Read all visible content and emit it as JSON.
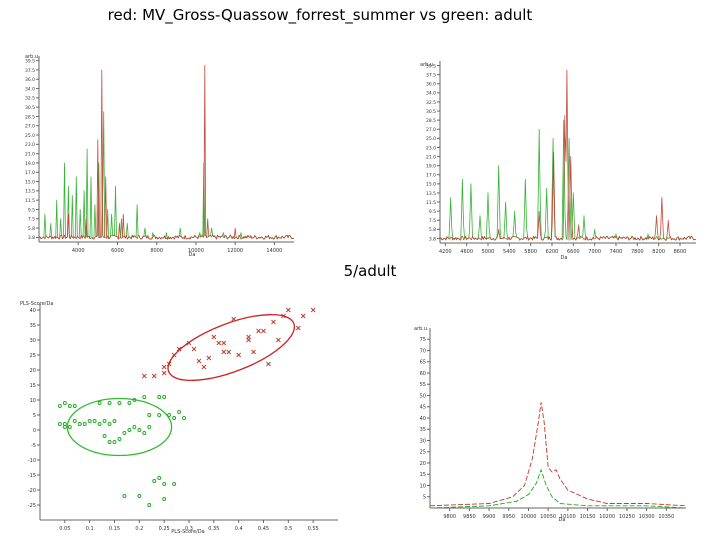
{
  "header": {
    "title": "red: MV_Gross-Quassow_forrest_summer vs  green: adult",
    "subtitle": "5/adult"
  },
  "colors": {
    "red": "#c0392b",
    "green": "#22aa22",
    "axis": "#666666",
    "ellipse_red": "#cc2222",
    "ellipse_green": "#33bb33"
  },
  "chart_data": [
    {
      "type": "line",
      "name": "spectrum-top-left",
      "xlim": [
        2000,
        15000
      ],
      "ylim": [
        0,
        40
      ],
      "x_ticks": [
        "4000",
        "6000",
        "8000",
        "10000",
        "12000",
        "14000"
      ],
      "x_tick_values": [
        4000,
        6000,
        8000,
        10000,
        12000,
        14000
      ],
      "y_ticks": [
        "3.8",
        "5.8",
        "7.5",
        "9.5",
        "11.5",
        "13.5",
        "15.0",
        "17.0",
        "19.0",
        "21.0",
        "23.0",
        "25.0",
        "27.0",
        "28.5",
        "30.5",
        "32.5",
        "34.0",
        "36.0",
        "37.5",
        "39.5"
      ],
      "xlabel": "Da",
      "ylabel": "arb.u.",
      "series": [
        {
          "color": "green",
          "peaks": [
            [
              2300,
              6
            ],
            [
              2600,
              4
            ],
            [
              2900,
              9
            ],
            [
              3100,
              5
            ],
            [
              3300,
              17
            ],
            [
              3500,
              12
            ],
            [
              3700,
              10
            ],
            [
              3900,
              14
            ],
            [
              4100,
              7
            ],
            [
              4300,
              11
            ],
            [
              4450,
              20
            ],
            [
              4650,
              14
            ],
            [
              4850,
              8
            ],
            [
              5050,
              17
            ],
            [
              5250,
              11
            ],
            [
              5300,
              28
            ],
            [
              5500,
              7
            ],
            [
              5700,
              6
            ],
            [
              5900,
              12
            ],
            [
              6200,
              5
            ],
            [
              6500,
              4
            ],
            [
              7000,
              8
            ],
            [
              7400,
              3
            ],
            [
              7800,
              2
            ],
            [
              8500,
              2
            ],
            [
              9200,
              3
            ],
            [
              10200,
              2
            ],
            [
              10400,
              17
            ],
            [
              10800,
              3
            ],
            [
              11400,
              2
            ],
            [
              12300,
              2
            ]
          ]
        },
        {
          "color": "red",
          "peaks": [
            [
              3500,
              6
            ],
            [
              4400,
              5
            ],
            [
              5000,
              22
            ],
            [
              5200,
              37
            ],
            [
              5400,
              14
            ],
            [
              6100,
              4
            ],
            [
              6300,
              6
            ],
            [
              10450,
              38
            ],
            [
              10600,
              5
            ],
            [
              12000,
              3
            ]
          ]
        }
      ]
    },
    {
      "type": "line",
      "name": "spectrum-top-right",
      "xlim": [
        4100,
        8900
      ],
      "ylim": [
        0,
        40
      ],
      "x_ticks": [
        "4200",
        "4600",
        "5000",
        "5400",
        "5800",
        "6200",
        "6600",
        "7000",
        "7400",
        "7800",
        "8200",
        "8600"
      ],
      "x_tick_values": [
        4200,
        4600,
        5000,
        5400,
        5800,
        6200,
        6600,
        7000,
        7400,
        7800,
        8200,
        8600
      ],
      "y_ticks": [
        "3.8",
        "5.8",
        "7.5",
        "9.5",
        "11.5",
        "13.5",
        "15.0",
        "17.0",
        "19.0",
        "21.0",
        "23.0",
        "25.0",
        "27.0",
        "28.5",
        "30.5",
        "32.5",
        "34.0",
        "36.0",
        "37.5",
        "39.5"
      ],
      "xlabel": "Da",
      "ylabel": "arb.u.",
      "series": [
        {
          "color": "green",
          "peaks": [
            [
              4300,
              10
            ],
            [
              4520,
              14
            ],
            [
              4680,
              13
            ],
            [
              4850,
              6
            ],
            [
              5000,
              11
            ],
            [
              5200,
              17
            ],
            [
              5330,
              9
            ],
            [
              5500,
              7
            ],
            [
              5700,
              14
            ],
            [
              5960,
              25
            ],
            [
              6100,
              12
            ],
            [
              6220,
              23
            ],
            [
              6420,
              27
            ],
            [
              6520,
              23
            ],
            [
              6600,
              11
            ],
            [
              6800,
              6
            ],
            [
              7000,
              3
            ],
            [
              7400,
              2
            ],
            [
              8000,
              2
            ]
          ]
        },
        {
          "color": "red",
          "peaks": [
            [
              5200,
              3
            ],
            [
              5960,
              7
            ],
            [
              6230,
              20
            ],
            [
              6440,
              28
            ],
            [
              6480,
              38
            ],
            [
              6550,
              19
            ],
            [
              6700,
              4
            ],
            [
              8160,
              6
            ],
            [
              8260,
              10
            ],
            [
              8380,
              5
            ]
          ]
        }
      ]
    },
    {
      "type": "scatter",
      "name": "pca-scatter",
      "xlim": [
        0,
        0.6
      ],
      "ylim": [
        -30,
        42
      ],
      "x_ticks": [
        "0.05",
        "0.1",
        "0.15",
        "0.2",
        "0.25",
        "0.3",
        "0.35",
        "0.4",
        "0.45",
        "0.5",
        "0.55"
      ],
      "x_tick_values": [
        0.05,
        0.1,
        0.15,
        0.2,
        0.25,
        0.3,
        0.35,
        0.4,
        0.45,
        0.5,
        0.55
      ],
      "y_ticks": [
        "-25",
        "-20",
        "-15",
        "-10",
        "-5",
        "0",
        "5",
        "10",
        "15",
        "20",
        "25",
        "30",
        "35",
        "40"
      ],
      "y_tick_values": [
        -25,
        -20,
        -15,
        -10,
        -5,
        0,
        5,
        10,
        15,
        20,
        25,
        30,
        35,
        40
      ],
      "xlabel": "PLS-Score/Da",
      "ylabel": "PLS-Score/Da",
      "series": [
        {
          "color": "red",
          "marker": "x",
          "points": [
            [
              0.21,
              18
            ],
            [
              0.23,
              18
            ],
            [
              0.25,
              19
            ],
            [
              0.25,
              21
            ],
            [
              0.26,
              22
            ],
            [
              0.27,
              25
            ],
            [
              0.28,
              27
            ],
            [
              0.3,
              29
            ],
            [
              0.31,
              27
            ],
            [
              0.32,
              23
            ],
            [
              0.33,
              21
            ],
            [
              0.34,
              24
            ],
            [
              0.35,
              31
            ],
            [
              0.36,
              29
            ],
            [
              0.37,
              29
            ],
            [
              0.37,
              26
            ],
            [
              0.38,
              26
            ],
            [
              0.39,
              37
            ],
            [
              0.4,
              25
            ],
            [
              0.42,
              31
            ],
            [
              0.42,
              30
            ],
            [
              0.43,
              26
            ],
            [
              0.44,
              33
            ],
            [
              0.45,
              33
            ],
            [
              0.46,
              22
            ],
            [
              0.47,
              36
            ],
            [
              0.48,
              30
            ],
            [
              0.49,
              38
            ],
            [
              0.5,
              40
            ],
            [
              0.52,
              34
            ],
            [
              0.53,
              38
            ],
            [
              0.55,
              40
            ]
          ]
        },
        {
          "color": "green",
          "marker": "dot",
          "points": [
            [
              0.04,
              2
            ],
            [
              0.05,
              1
            ],
            [
              0.05,
              2
            ],
            [
              0.06,
              1
            ],
            [
              0.07,
              3
            ],
            [
              0.04,
              8
            ],
            [
              0.05,
              9
            ],
            [
              0.06,
              8
            ],
            [
              0.07,
              8
            ],
            [
              0.08,
              2
            ],
            [
              0.09,
              2
            ],
            [
              0.1,
              3
            ],
            [
              0.11,
              3
            ],
            [
              0.12,
              2
            ],
            [
              0.13,
              3
            ],
            [
              0.14,
              2
            ],
            [
              0.15,
              3
            ],
            [
              0.12,
              9
            ],
            [
              0.14,
              9
            ],
            [
              0.16,
              9
            ],
            [
              0.18,
              9
            ],
            [
              0.13,
              -2
            ],
            [
              0.14,
              -4
            ],
            [
              0.15,
              -4
            ],
            [
              0.16,
              -3
            ],
            [
              0.17,
              -1
            ],
            [
              0.18,
              0
            ],
            [
              0.19,
              1
            ],
            [
              0.2,
              0
            ],
            [
              0.21,
              -1
            ],
            [
              0.22,
              1
            ],
            [
              0.19,
              10
            ],
            [
              0.21,
              11
            ],
            [
              0.24,
              11
            ],
            [
              0.25,
              11
            ],
            [
              0.22,
              5
            ],
            [
              0.24,
              5
            ],
            [
              0.26,
              5
            ],
            [
              0.27,
              4
            ],
            [
              0.28,
              6
            ],
            [
              0.29,
              4
            ],
            [
              0.17,
              -22
            ],
            [
              0.2,
              -22
            ],
            [
              0.22,
              -25
            ],
            [
              0.23,
              -17
            ],
            [
              0.24,
              -16
            ],
            [
              0.25,
              -18
            ],
            [
              0.25,
              -23
            ],
            [
              0.27,
              -18
            ]
          ]
        }
      ],
      "ellipses": [
        {
          "color": "ellipse_red",
          "cx": 0.385,
          "cy": 27.5,
          "rx": 0.135,
          "ry": 8,
          "rotate_deg": -21
        },
        {
          "color": "ellipse_green",
          "cx": 0.16,
          "cy": 1,
          "rx": 0.105,
          "ry": 9.5,
          "rotate_deg": 0
        }
      ]
    },
    {
      "type": "line",
      "name": "spectrum-bottom-right",
      "xlim": [
        9750,
        10400
      ],
      "ylim": [
        0,
        80
      ],
      "x_ticks": [
        "9800",
        "9850",
        "9900",
        "9950",
        "10000",
        "10050",
        "10100",
        "10150",
        "10200",
        "10250",
        "10300",
        "10350"
      ],
      "x_tick_values": [
        9800,
        9850,
        9900,
        9950,
        10000,
        10050,
        10100,
        10150,
        10200,
        10250,
        10300,
        10350
      ],
      "y_ticks": [
        "5",
        "10",
        "15",
        "20",
        "25",
        "30",
        "35",
        "40",
        "45",
        "50",
        "55",
        "60",
        "65",
        "70",
        "75"
      ],
      "y_tick_values": [
        5,
        10,
        15,
        20,
        25,
        30,
        35,
        40,
        45,
        50,
        55,
        60,
        65,
        70,
        75
      ],
      "xlabel": "Da",
      "ylabel": "arb.u.",
      "series": [
        {
          "color": "red",
          "dashed": true,
          "profile": [
            [
              9750,
              1
            ],
            [
              9900,
              2
            ],
            [
              9960,
              5
            ],
            [
              9990,
              10
            ],
            [
              10010,
              22
            ],
            [
              10025,
              38
            ],
            [
              10032,
              47
            ],
            [
              10040,
              38
            ],
            [
              10050,
              18
            ],
            [
              10060,
              16
            ],
            [
              10070,
              17
            ],
            [
              10080,
              13
            ],
            [
              10100,
              8
            ],
            [
              10150,
              4
            ],
            [
              10200,
              2
            ],
            [
              10300,
              2
            ],
            [
              10400,
              1
            ]
          ]
        },
        {
          "color": "green",
          "dashed": true,
          "profile": [
            [
              9750,
              0
            ],
            [
              9900,
              1
            ],
            [
              9970,
              3
            ],
            [
              10000,
              6
            ],
            [
              10020,
              11
            ],
            [
              10032,
              17
            ],
            [
              10045,
              10
            ],
            [
              10060,
              5
            ],
            [
              10080,
              2
            ],
            [
              10150,
              1
            ],
            [
              10300,
              1
            ],
            [
              10400,
              0
            ]
          ]
        }
      ]
    }
  ]
}
